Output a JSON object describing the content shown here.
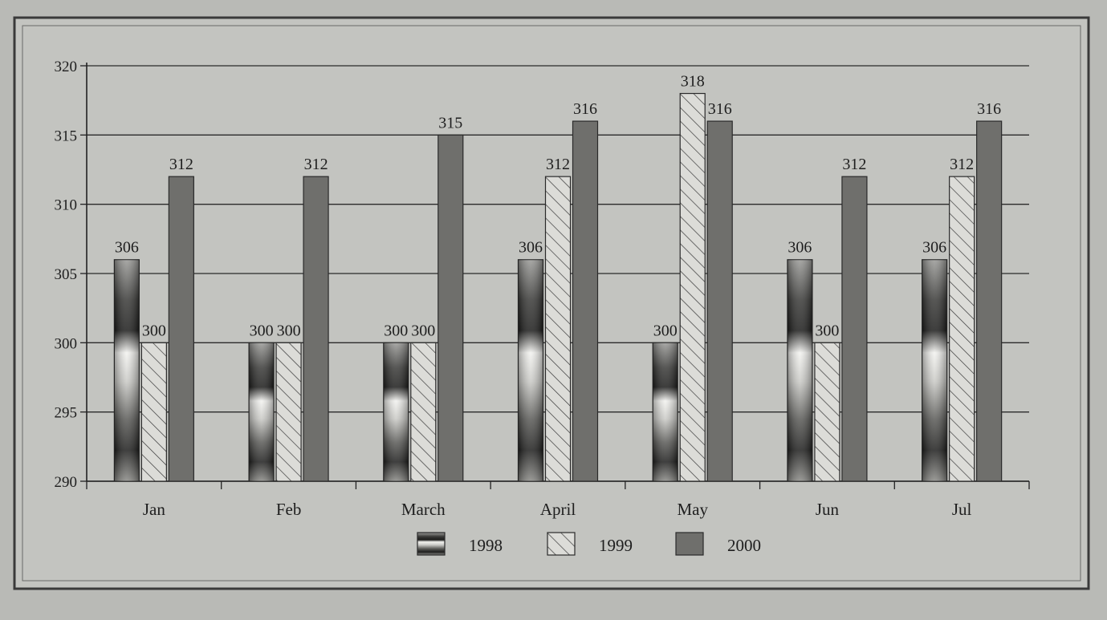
{
  "chart_data": {
    "type": "bar",
    "title": "",
    "xlabel": "",
    "ylabel": "",
    "ylim": [
      290,
      320
    ],
    "yticks": [
      290,
      295,
      300,
      305,
      310,
      315,
      320
    ],
    "grid": true,
    "legend_position": "bottom-center",
    "categories": [
      "Jan",
      "Feb",
      "March",
      "April",
      "May",
      "Jun",
      "Jul"
    ],
    "series": [
      {
        "name": "1998",
        "pattern": "gradient-shaded",
        "values": [
          306,
          300,
          300,
          306,
          300,
          306,
          306
        ],
        "labels": [
          "306",
          "300",
          "300",
          "306",
          "300",
          "306",
          "306"
        ]
      },
      {
        "name": "1999",
        "pattern": "diagonal-hatch",
        "values": [
          300,
          300,
          300,
          312,
          318,
          300,
          312
        ],
        "labels": [
          "300",
          "300",
          "300",
          "312",
          "318",
          "300",
          "312"
        ]
      },
      {
        "name": "2000",
        "pattern": "solid-dark-gray",
        "values": [
          312,
          312,
          315,
          316,
          316,
          312,
          316
        ],
        "labels": [
          "312",
          "312",
          "315",
          "316",
          "316",
          "312",
          "316"
        ]
      }
    ],
    "colors": {
      "bar_2000": "#6f6f6c",
      "hatch_bg": "#dcdcd8",
      "grid": "#2a2a2a"
    }
  }
}
